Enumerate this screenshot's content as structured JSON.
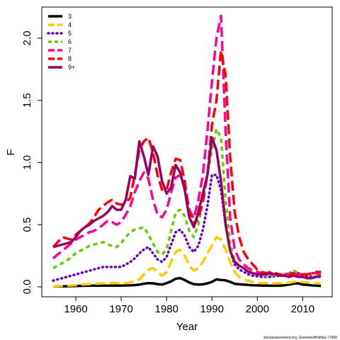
{
  "chart_data": {
    "type": "line",
    "xlabel": "Year",
    "ylabel": "F",
    "xlim": [
      1952.5,
      2016.5
    ],
    "ylim": [
      -0.08,
      2.25
    ],
    "x_ticks": [
      1960,
      1970,
      1980,
      1990,
      2000,
      2010
    ],
    "y_ticks": [
      0.0,
      0.5,
      1.0,
      1.5,
      2.0
    ],
    "y_tick_labels": [
      "0.0",
      "0.5",
      "1.0",
      "1.5",
      "2.0"
    ],
    "grid": false,
    "legend_position": "top-left",
    "credit": "stockassessment.org, GreenlandHalibut, r7690",
    "x": [
      1955,
      1956,
      1957,
      1958,
      1959,
      1960,
      1961,
      1962,
      1963,
      1964,
      1965,
      1966,
      1967,
      1968,
      1969,
      1970,
      1971,
      1972,
      1973,
      1974,
      1975,
      1976,
      1977,
      1978,
      1979,
      1980,
      1981,
      1982,
      1983,
      1984,
      1985,
      1986,
      1987,
      1988,
      1989,
      1990,
      1991,
      1992,
      1993,
      1994,
      1995,
      1996,
      1997,
      1998,
      1999,
      2000,
      2001,
      2002,
      2003,
      2004,
      2005,
      2006,
      2007,
      2008,
      2009,
      2010,
      2011,
      2012,
      2013,
      2014
    ],
    "series": [
      {
        "name": "3",
        "color": "#000000",
        "dash": "solid",
        "values": [
          0.003,
          0.004,
          0.004,
          0.005,
          0.006,
          0.007,
          0.008,
          0.009,
          0.01,
          0.01,
          0.01,
          0.01,
          0.01,
          0.01,
          0.01,
          0.01,
          0.011,
          0.012,
          0.014,
          0.018,
          0.025,
          0.03,
          0.028,
          0.022,
          0.018,
          0.03,
          0.045,
          0.065,
          0.07,
          0.055,
          0.035,
          0.022,
          0.018,
          0.02,
          0.028,
          0.04,
          0.06,
          0.055,
          0.052,
          0.04,
          0.025,
          0.02,
          0.018,
          0.015,
          0.013,
          0.012,
          0.01,
          0.01,
          0.009,
          0.009,
          0.01,
          0.013,
          0.018,
          0.026,
          0.028,
          0.018,
          0.015,
          0.012,
          0.01,
          0.008
        ]
      },
      {
        "name": "4",
        "color": "#FFCC00",
        "dash": "long",
        "values": [
          0.005,
          0.006,
          0.008,
          0.01,
          0.012,
          0.014,
          0.017,
          0.02,
          0.022,
          0.024,
          0.026,
          0.028,
          0.03,
          0.032,
          0.03,
          0.028,
          0.03,
          0.035,
          0.045,
          0.06,
          0.1,
          0.14,
          0.15,
          0.12,
          0.09,
          0.12,
          0.2,
          0.28,
          0.3,
          0.25,
          0.17,
          0.13,
          0.15,
          0.2,
          0.27,
          0.33,
          0.4,
          0.38,
          0.3,
          0.2,
          0.12,
          0.08,
          0.06,
          0.05,
          0.04,
          0.035,
          0.03,
          0.03,
          0.028,
          0.028,
          0.03,
          0.03,
          0.032,
          0.04,
          0.045,
          0.038,
          0.035,
          0.03,
          0.028,
          0.026
        ]
      },
      {
        "name": "5",
        "color": "#6600CC",
        "dash": "dotted",
        "values": [
          0.05,
          0.06,
          0.07,
          0.08,
          0.09,
          0.1,
          0.11,
          0.12,
          0.13,
          0.14,
          0.15,
          0.16,
          0.16,
          0.16,
          0.16,
          0.16,
          0.18,
          0.2,
          0.23,
          0.27,
          0.3,
          0.32,
          0.27,
          0.22,
          0.2,
          0.24,
          0.34,
          0.44,
          0.46,
          0.41,
          0.32,
          0.28,
          0.33,
          0.46,
          0.65,
          0.9,
          0.9,
          0.78,
          0.5,
          0.29,
          0.18,
          0.14,
          0.12,
          0.1,
          0.09,
          0.085,
          0.08,
          0.08,
          0.08,
          0.085,
          0.09,
          0.1,
          0.11,
          0.12,
          0.11,
          0.09,
          0.085,
          0.08,
          0.08,
          0.08
        ]
      },
      {
        "name": "6",
        "color": "#66CC00",
        "dash": "short",
        "values": [
          0.15,
          0.17,
          0.19,
          0.21,
          0.24,
          0.27,
          0.29,
          0.31,
          0.33,
          0.34,
          0.35,
          0.36,
          0.34,
          0.33,
          0.32,
          0.35,
          0.4,
          0.44,
          0.46,
          0.47,
          0.48,
          0.42,
          0.35,
          0.28,
          0.26,
          0.3,
          0.45,
          0.6,
          0.62,
          0.57,
          0.45,
          0.4,
          0.5,
          0.7,
          0.9,
          1.1,
          1.27,
          1.2,
          0.7,
          0.35,
          0.21,
          0.17,
          0.15,
          0.13,
          0.11,
          0.1,
          0.095,
          0.09,
          0.09,
          0.095,
          0.1,
          0.1,
          0.11,
          0.13,
          0.11,
          0.1,
          0.1,
          0.1,
          0.1,
          0.1
        ]
      },
      {
        "name": "7",
        "color": "#FF0099",
        "dash": "long",
        "values": [
          0.23,
          0.26,
          0.29,
          0.32,
          0.35,
          0.38,
          0.4,
          0.42,
          0.44,
          0.45,
          0.47,
          0.5,
          0.53,
          0.52,
          0.5,
          0.52,
          0.58,
          0.65,
          0.76,
          0.85,
          0.92,
          0.87,
          0.7,
          0.58,
          0.56,
          0.62,
          0.76,
          0.88,
          0.9,
          0.8,
          0.62,
          0.55,
          0.7,
          0.9,
          1.25,
          1.65,
          2.0,
          2.18,
          1.25,
          0.56,
          0.3,
          0.22,
          0.18,
          0.15,
          0.13,
          0.12,
          0.11,
          0.1,
          0.1,
          0.1,
          0.1,
          0.1,
          0.1,
          0.11,
          0.1,
          0.1,
          0.1,
          0.11,
          0.11,
          0.11
        ]
      },
      {
        "name": "8",
        "color": "#FF0000",
        "dash": "long",
        "values": [
          0.32,
          0.36,
          0.4,
          0.39,
          0.38,
          0.42,
          0.45,
          0.48,
          0.51,
          0.56,
          0.62,
          0.65,
          0.68,
          0.7,
          0.67,
          0.66,
          0.67,
          0.72,
          0.9,
          1.1,
          1.17,
          1.2,
          1.08,
          0.9,
          0.78,
          0.78,
          0.92,
          1.03,
          1.02,
          0.85,
          0.6,
          0.5,
          0.55,
          0.68,
          0.9,
          1.3,
          1.5,
          1.9,
          1.7,
          1.05,
          0.6,
          0.4,
          0.28,
          0.22,
          0.18,
          0.14,
          0.12,
          0.11,
          0.12,
          0.11,
          0.1,
          0.09,
          0.09,
          0.11,
          0.09,
          0.1,
          0.1,
          0.11,
          0.12,
          0.12
        ]
      },
      {
        "name": "9+",
        "color": "#990066",
        "dash": "solid",
        "values": [
          0.32,
          0.33,
          0.34,
          0.35,
          0.36,
          0.4,
          0.45,
          0.48,
          0.5,
          0.53,
          0.55,
          0.57,
          0.6,
          0.65,
          0.62,
          0.62,
          0.7,
          0.89,
          0.87,
          1.17,
          1.05,
          0.9,
          1.13,
          1.05,
          0.85,
          0.75,
          0.8,
          0.98,
          0.92,
          0.78,
          0.56,
          0.48,
          0.6,
          0.75,
          0.9,
          1.2,
          1.1,
          0.85,
          0.5,
          0.29,
          0.2,
          0.17,
          0.15,
          0.12,
          0.11,
          0.1,
          0.1,
          0.1,
          0.11,
          0.1,
          0.09,
          0.09,
          0.08,
          0.09,
          0.08,
          0.08,
          0.07,
          0.07,
          0.08,
          0.09
        ]
      }
    ]
  }
}
